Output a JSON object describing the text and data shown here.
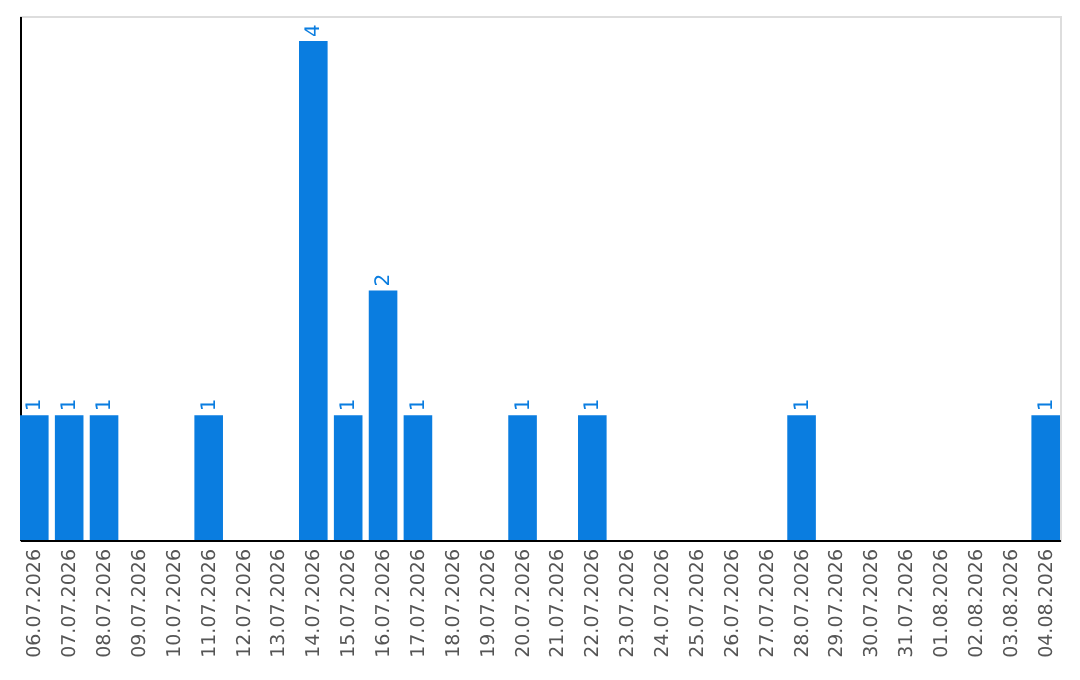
{
  "chart_data": {
    "type": "bar",
    "categories": [
      "06.07.2026",
      "07.07.2026",
      "08.07.2026",
      "09.07.2026",
      "10.07.2026",
      "11.07.2026",
      "12.07.2026",
      "13.07.2026",
      "14.07.2026",
      "15.07.2026",
      "16.07.2026",
      "17.07.2026",
      "18.07.2026",
      "19.07.2026",
      "20.07.2026",
      "21.07.2026",
      "22.07.2026",
      "23.07.2026",
      "24.07.2026",
      "25.07.2026",
      "26.07.2026",
      "27.07.2026",
      "28.07.2026",
      "29.07.2026",
      "30.07.2026",
      "31.07.2026",
      "01.08.2026",
      "02.08.2026",
      "03.08.2026",
      "04.08.2026"
    ],
    "values": [
      1,
      1,
      1,
      0,
      0,
      1,
      0,
      0,
      4,
      1,
      2,
      1,
      0,
      0,
      1,
      0,
      1,
      0,
      0,
      0,
      0,
      0,
      1,
      0,
      0,
      0,
      0,
      0,
      0,
      1
    ],
    "value_labels": [
      "1",
      "1",
      "1",
      null,
      null,
      "1",
      null,
      null,
      "4",
      "1",
      "2",
      "1",
      null,
      null,
      "1",
      null,
      "1",
      null,
      null,
      null,
      null,
      null,
      "1",
      null,
      null,
      null,
      null,
      null,
      null,
      "1"
    ],
    "color": "#0a7de0",
    "ylim": [
      0,
      4.2
    ],
    "tick_labels": "x"
  }
}
